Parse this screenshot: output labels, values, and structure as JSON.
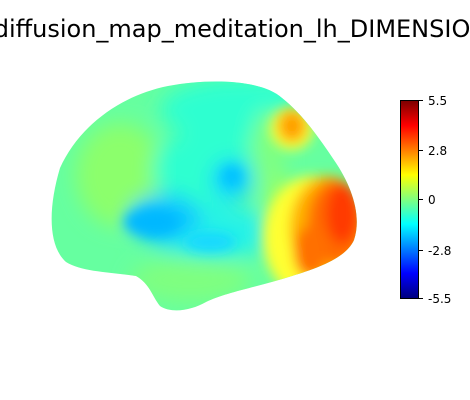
{
  "figure": {
    "title": "_diffusion_map_meditation_lh_DIMENSION"
  },
  "colorbar": {
    "colormap": "jet",
    "range": [
      -5.5,
      5.5
    ],
    "ticks": [
      "5.5",
      "2.8",
      "0",
      "-2.8",
      "-5.5"
    ],
    "colors": [
      "#7f0000",
      "#ff0000",
      "#ff7f00",
      "#ffff00",
      "#7fff7f",
      "#00ffff",
      "#007fff",
      "#0000ff",
      "#00007f"
    ]
  }
}
